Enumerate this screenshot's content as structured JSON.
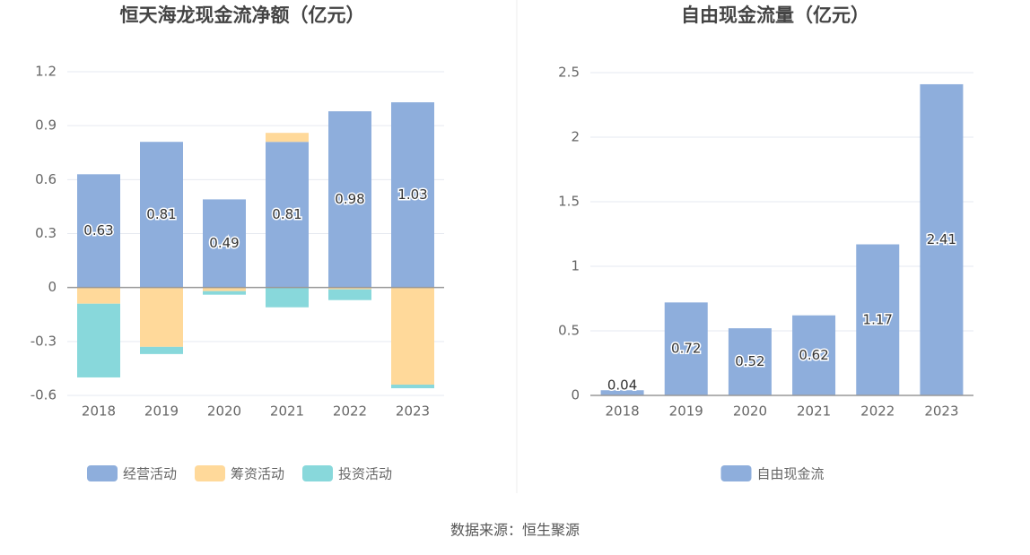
{
  "chart_data": [
    {
      "type": "stacked_bar",
      "title": "恒天海龙现金流净额（亿元）",
      "categories": [
        "2018",
        "2019",
        "2020",
        "2021",
        "2022",
        "2023"
      ],
      "series": [
        {
          "name": "经营活动",
          "color": "#8eaedc",
          "labels": true,
          "values": [
            0.63,
            0.81,
            0.49,
            0.81,
            0.98,
            1.03
          ]
        },
        {
          "name": "筹资活动",
          "color": "#ffd99a",
          "values": [
            -0.09,
            -0.33,
            -0.02,
            0.05,
            -0.01,
            -0.54
          ]
        },
        {
          "name": "投资活动",
          "color": "#88d8db",
          "values": [
            -0.41,
            -0.04,
            -0.02,
            -0.11,
            -0.06,
            -0.02
          ]
        }
      ],
      "ylim": [
        -0.6,
        1.2
      ],
      "yticks": [
        -0.6,
        -0.3,
        0,
        0.3,
        0.6,
        0.9,
        1.2
      ],
      "grid": true
    },
    {
      "type": "bar",
      "title": "自由现金流量（亿元）",
      "categories": [
        "2018",
        "2019",
        "2020",
        "2021",
        "2022",
        "2023"
      ],
      "series": [
        {
          "name": "自由现金流",
          "color": "#8eaedc",
          "labels": true,
          "values": [
            0.04,
            0.72,
            0.52,
            0.62,
            1.17,
            2.41
          ]
        }
      ],
      "ylim": [
        0,
        2.5
      ],
      "yticks": [
        0,
        0.5,
        1,
        1.5,
        2,
        2.5
      ],
      "grid": true
    }
  ],
  "source": "数据来源：恒生聚源"
}
